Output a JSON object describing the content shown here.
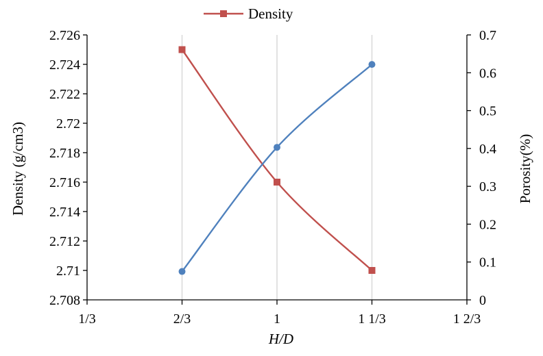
{
  "chart_data": {
    "type": "line",
    "legend": {
      "placement": "top-center",
      "entries": [
        "Density"
      ]
    },
    "x": {
      "title": "H/D",
      "ticks": [
        {
          "value": 0.3333,
          "label": "1/3"
        },
        {
          "value": 0.6667,
          "label": "2/3"
        },
        {
          "value": 1.0,
          "label": "1"
        },
        {
          "value": 1.3333,
          "label": "1 1/3"
        },
        {
          "value": 1.6667,
          "label": "1 2/3"
        }
      ],
      "range": [
        0.3333,
        1.6667
      ],
      "grid": true
    },
    "y_left": {
      "title": "Density (g/cm3)",
      "range": [
        2.708,
        2.726
      ],
      "ticks": [
        "2.708",
        "2.71",
        "2.712",
        "2.714",
        "2.716",
        "2.718",
        "2.72",
        "2.722",
        "2.724",
        "2.726"
      ]
    },
    "y_right": {
      "title": "Porosity(%)",
      "range": [
        0,
        0.7
      ],
      "ticks": [
        "0",
        "0.1",
        "0.2",
        "0.3",
        "0.4",
        "0.5",
        "0.6",
        "0.7"
      ]
    },
    "series": [
      {
        "name": "Density",
        "axis": "left",
        "color": "#c0504d",
        "marker": "square",
        "x": [
          0.6667,
          1.0,
          1.3333
        ],
        "y": [
          2.725,
          2.716,
          2.71
        ]
      },
      {
        "axis": "right",
        "color": "#4f81bd",
        "marker": "circle",
        "x": [
          0.6667,
          1.0,
          1.3333
        ],
        "y": [
          0.075,
          0.403,
          0.622
        ]
      }
    ]
  }
}
